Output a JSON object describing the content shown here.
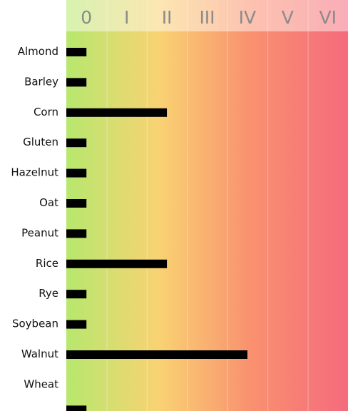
{
  "chart_data": {
    "type": "bar",
    "orientation": "horizontal",
    "title": "",
    "xlabel": "",
    "ylabel": "",
    "x_tick_labels": [
      "0",
      "I",
      "II",
      "III",
      "IV",
      "V",
      "VI"
    ],
    "xlim": [
      0,
      7
    ],
    "categories": [
      "Almond",
      "Barley",
      "Corn",
      "Gluten",
      "Hazelnut",
      "Oat",
      "Peanut",
      "Rice",
      "Rye",
      "Soybean",
      "Walnut",
      "Wheat"
    ],
    "values": [
      0.5,
      0.5,
      2.5,
      0.5,
      0.5,
      0.5,
      0.5,
      2.5,
      0.5,
      0.5,
      4.5,
      0.5
    ],
    "grid": true,
    "bar_color": "#000000",
    "background_gradient": [
      "#b7e86e",
      "#f9d273",
      "#f9906f",
      "#f56b7d"
    ],
    "header_tint": "#ffffff"
  }
}
